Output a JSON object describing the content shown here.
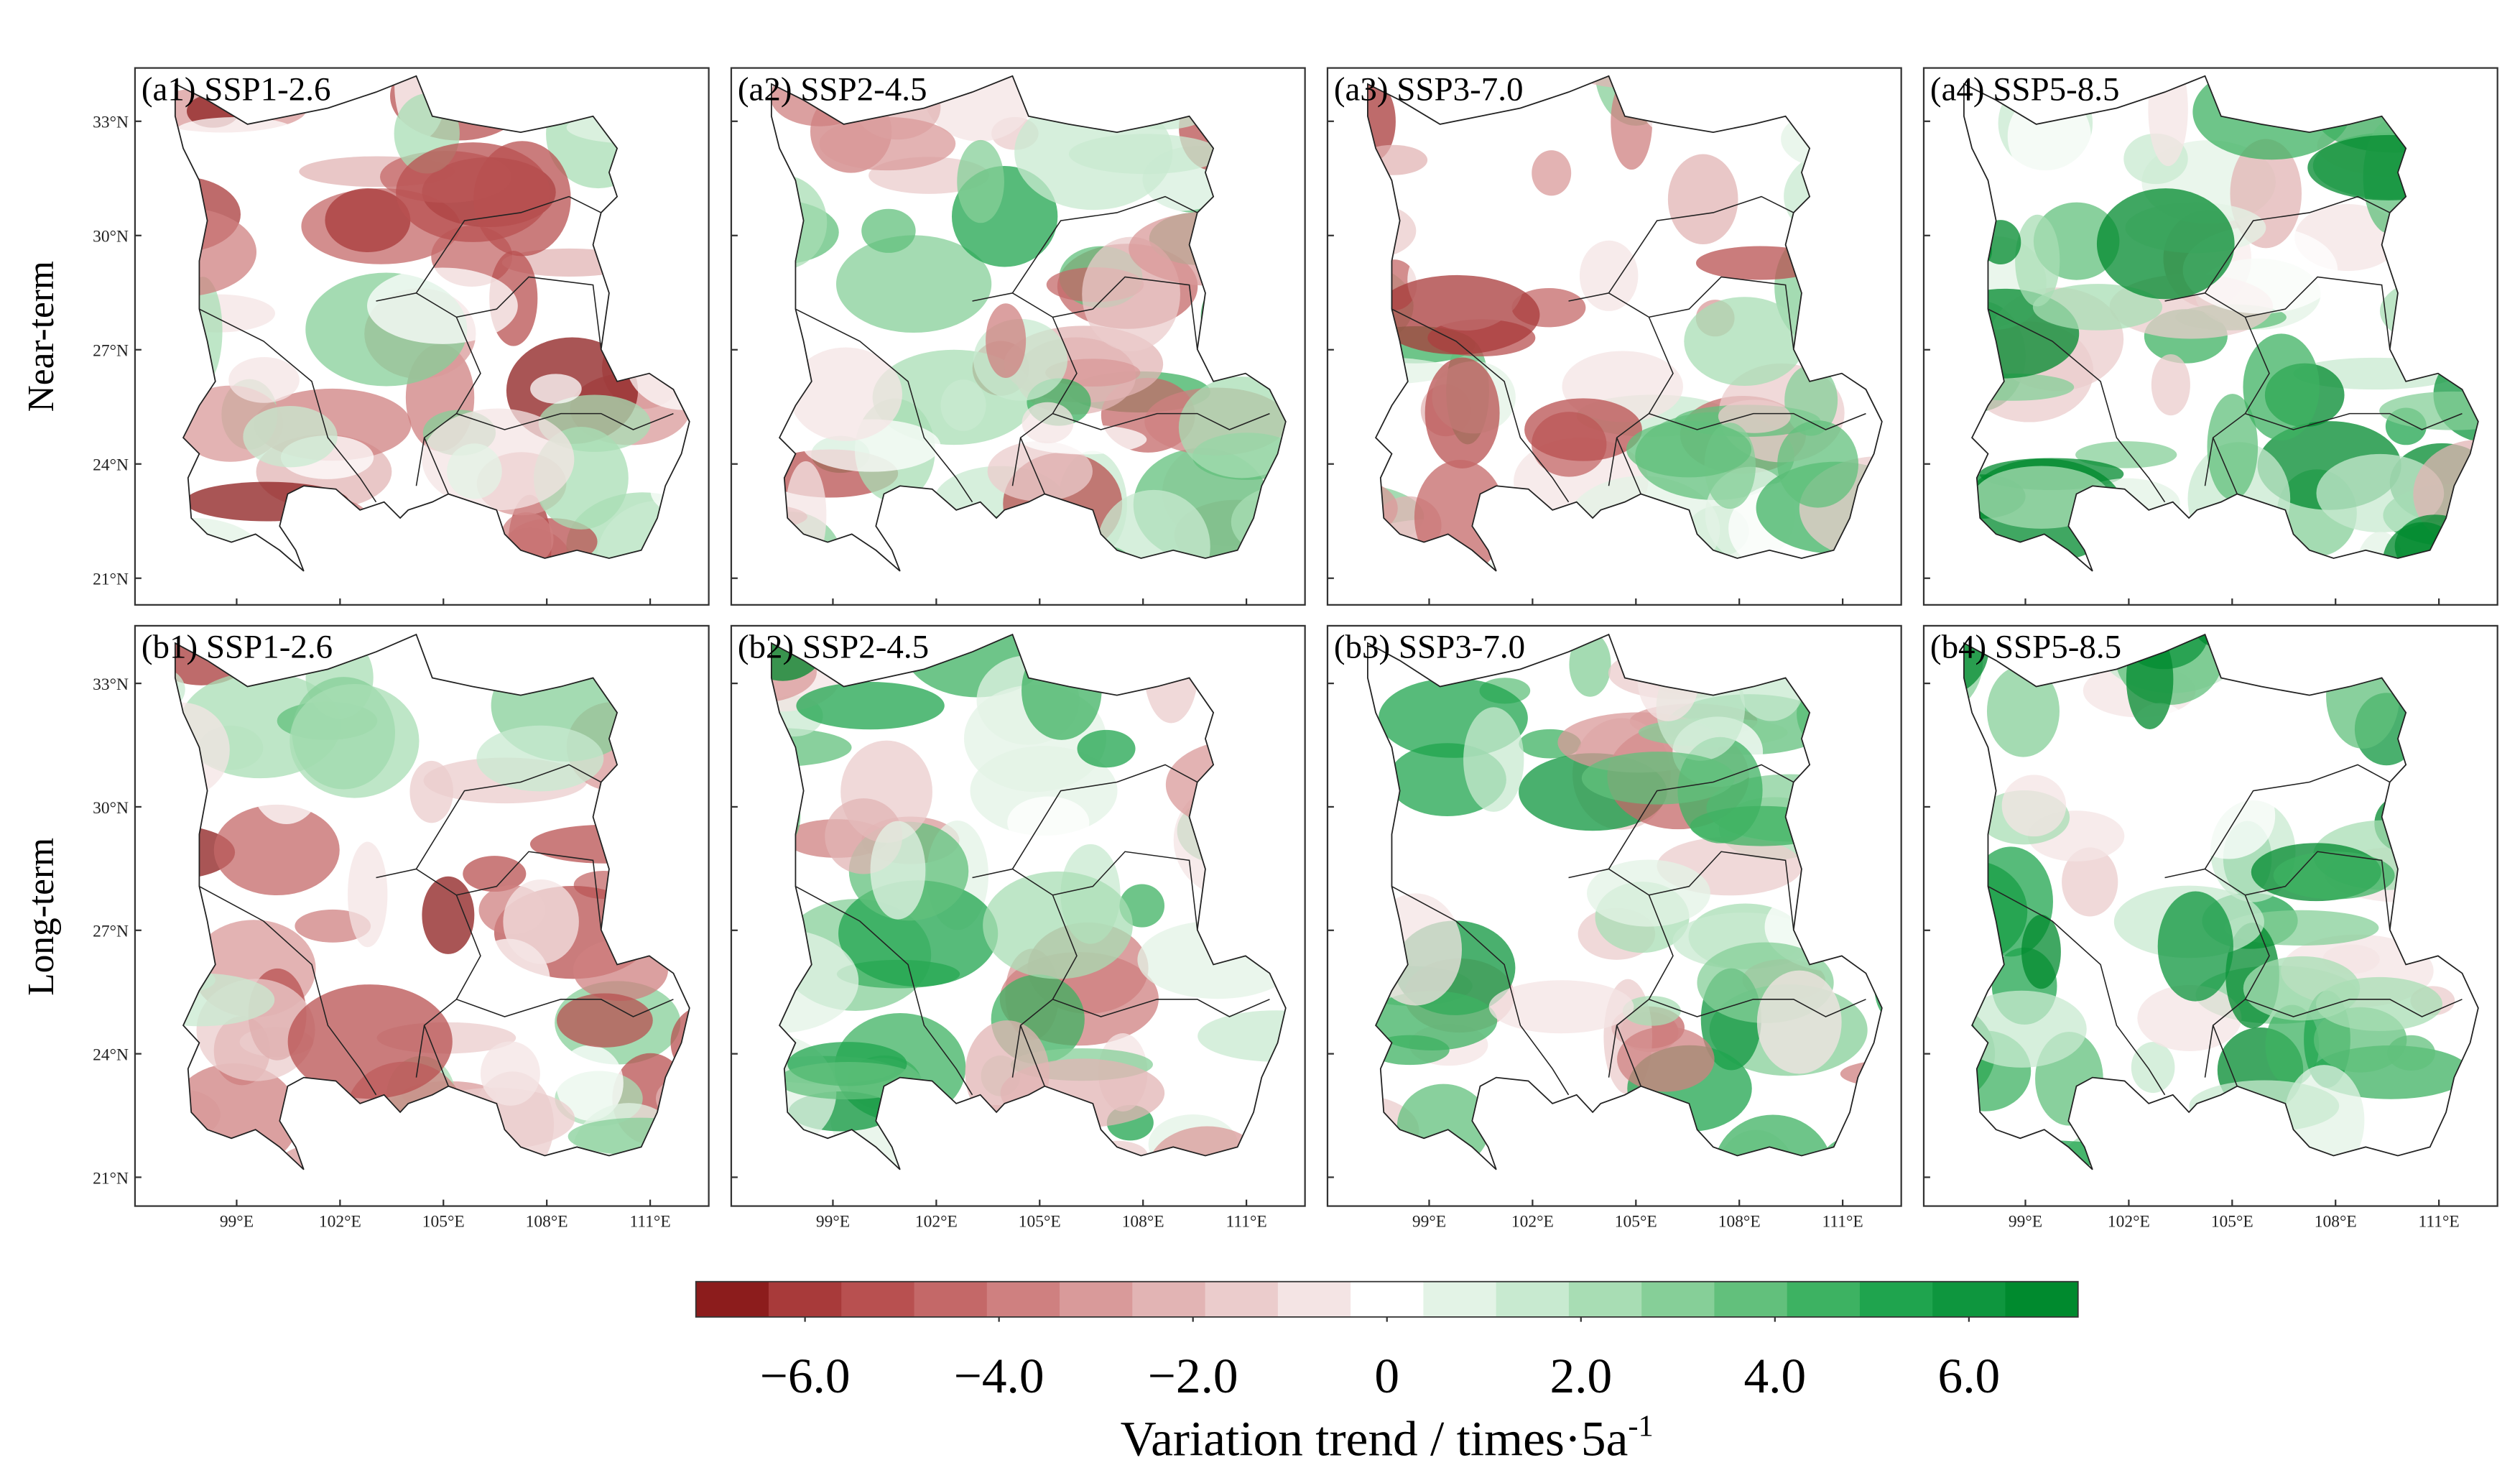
{
  "figure": {
    "panels": [
      {
        "label": "(a1) SSP1-2.6"
      },
      {
        "label": "(a2) SSP2-4.5"
      },
      {
        "label": "(a3) SSP3-7.0"
      },
      {
        "label": "(a4) SSP5-8.5"
      },
      {
        "label": "(b1) SSP1-2.6"
      },
      {
        "label": "(b2) SSP2-4.5"
      },
      {
        "label": "(b3) SSP3-7.0"
      },
      {
        "label": "(b4) SSP5-8.5"
      }
    ],
    "row_labels": [
      "Near-term",
      "Long-term"
    ],
    "map": {
      "xlim": [
        96.05,
        112.7
      ],
      "ylim": [
        20.3,
        34.4
      ],
      "xticks": [
        {
          "value": 99,
          "label": "99°E"
        },
        {
          "value": 102,
          "label": "102°E"
        },
        {
          "value": 105,
          "label": "105°E"
        },
        {
          "value": 108,
          "label": "108°E"
        },
        {
          "value": 111,
          "label": "111°E"
        }
      ],
      "yticks": [
        {
          "value": 21,
          "label": "21°N"
        },
        {
          "value": 24,
          "label": "24°N"
        },
        {
          "value": 27,
          "label": "27°N"
        },
        {
          "value": 30,
          "label": "30°N"
        },
        {
          "value": 33,
          "label": "33°N"
        }
      ]
    },
    "colorbar": {
      "label": "Variation trend / times·5a",
      "label_sup": "-1",
      "xlim": [
        -7.125,
        7.125
      ],
      "ticks": [
        {
          "value": -6,
          "label": "−6.0"
        },
        {
          "value": -4,
          "label": "−4.0"
        },
        {
          "value": -2,
          "label": "−2.0"
        },
        0,
        {
          "value": 2,
          "label": "2.0"
        },
        {
          "value": 4,
          "label": "4.0"
        },
        {
          "value": 6,
          "label": "6.0"
        }
      ],
      "colors": [
        "#8c1c1c",
        "#a83a3a",
        "#b85050",
        "#c46868",
        "#cf8080",
        "#d99a9a",
        "#e2b4b4",
        "#ebcccc",
        "#f4e4e4",
        "#ffffff",
        "#e3f3e6",
        "#c8ead0",
        "#a8ddb4",
        "#86cf98",
        "#62c07c",
        "#3db262",
        "#1fa44e",
        "#0e963e",
        "#008a2e"
      ]
    }
  }
}
